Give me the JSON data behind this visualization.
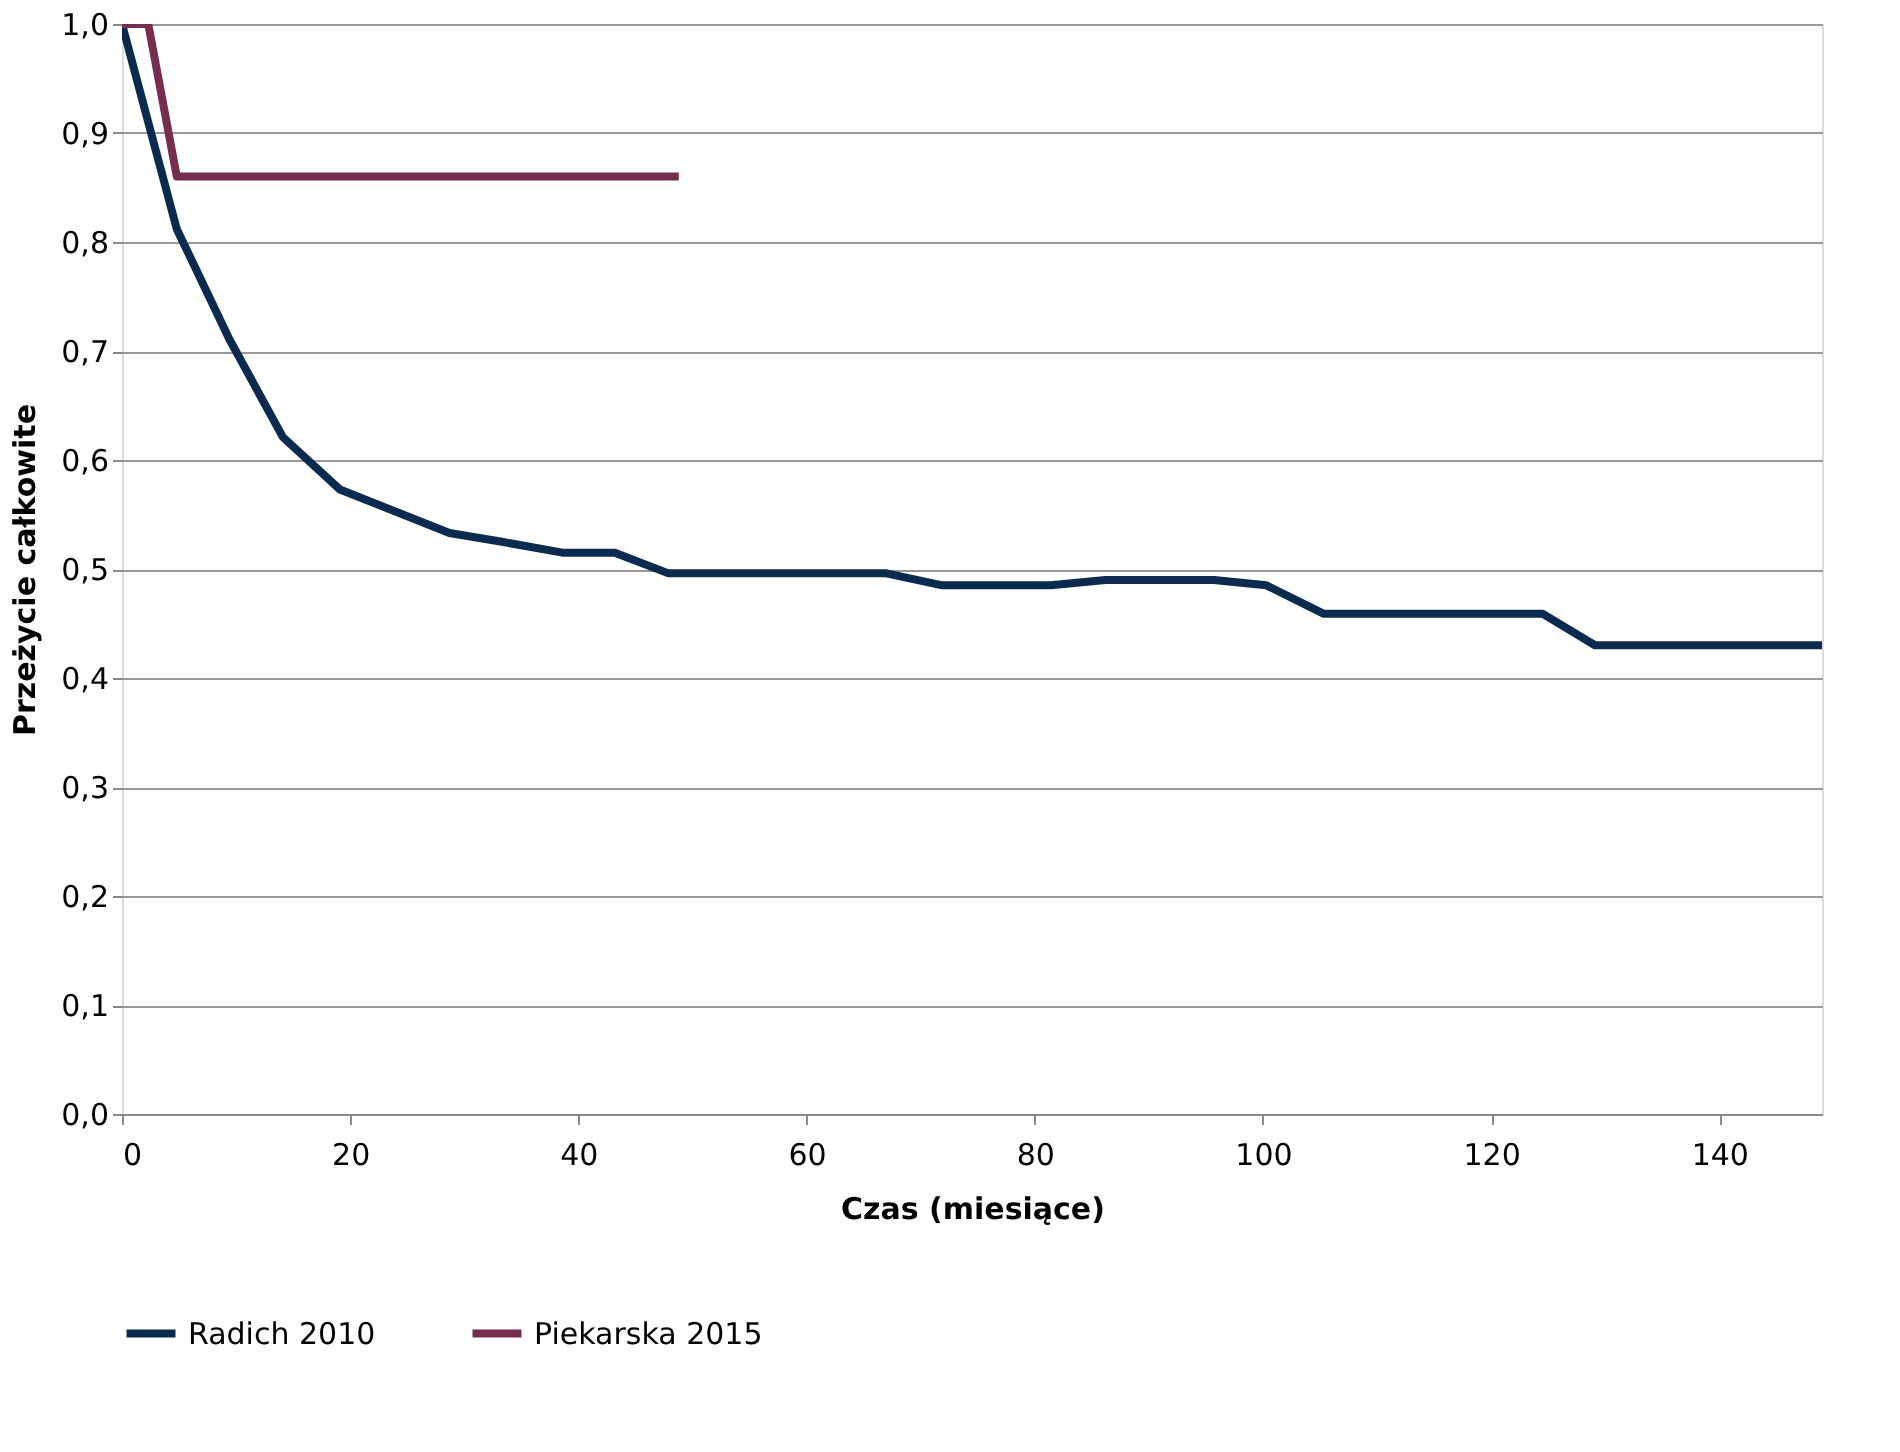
{
  "chart_data": {
    "type": "line",
    "xlabel": "Czas (miesiące)",
    "ylabel": "Przeżycie całkowite",
    "xlim": [
      0,
      149
    ],
    "xticks": [
      0,
      20,
      40,
      60,
      80,
      100,
      120,
      140
    ],
    "ylim": [
      0,
      1
    ],
    "yticks": [
      {
        "value": 0,
        "label": "0,0"
      },
      {
        "value": 0.1,
        "label": "0,1"
      },
      {
        "value": 0.2,
        "label": "0,2"
      },
      {
        "value": 0.3,
        "label": "0,3"
      },
      {
        "value": 0.4,
        "label": "0,4"
      },
      {
        "value": 0.5,
        "label": "0,5"
      },
      {
        "value": 0.6,
        "label": "0,6"
      },
      {
        "value": 0.7,
        "label": "0,7"
      },
      {
        "value": 0.8,
        "label": "0,8"
      },
      {
        "value": 0.9,
        "label": "0,9"
      },
      {
        "value": 1,
        "label": "1,0"
      }
    ],
    "grid": "y",
    "legend": "bottom",
    "marker": "none",
    "line_style": "solid",
    "series": [
      {
        "name": "Radich 2010",
        "color": "#0b2a50",
        "x": [
          0,
          4.8,
          9.4,
          14.1,
          19.1,
          28.7,
          33.3,
          38.6,
          43.2,
          47.9,
          67.0,
          71.9,
          81.4,
          86.2,
          95.7,
          100.3,
          105.3,
          124.5,
          129.1,
          149
        ],
        "values": [
          1.0,
          0.812,
          0.711,
          0.621,
          0.573,
          0.533,
          0.525,
          0.515,
          0.515,
          0.496,
          0.496,
          0.485,
          0.485,
          0.49,
          0.49,
          0.485,
          0.459,
          0.459,
          0.43,
          0.43
        ]
      },
      {
        "name": "Piekarska 2015",
        "color": "#772d4e",
        "x": [
          0,
          2.3,
          4.8,
          48.8
        ],
        "values": [
          1.0,
          1.0,
          0.86,
          0.86
        ]
      }
    ]
  }
}
